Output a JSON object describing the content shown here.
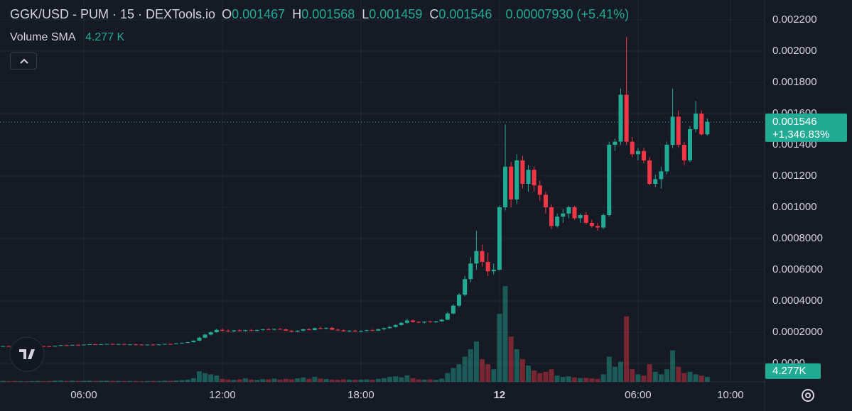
{
  "chart_data": {
    "type": "candlestick",
    "title": "GGK/USD - PUM · 15 · DEXTools.io",
    "legend_ohlc": [
      {
        "label": "O",
        "value": "0.001467"
      },
      {
        "label": "H",
        "value": "0.001568"
      },
      {
        "label": "L",
        "value": "0.001459"
      },
      {
        "label": "C",
        "value": "0.001546"
      }
    ],
    "change": "0.00007930 (+5.41%)",
    "volume_sma": {
      "name": "Volume SMA",
      "value": 4277,
      "label": "4.277 K",
      "axis_label": "4.277K"
    },
    "last_price": {
      "value": 0.001546,
      "label": "0.001546",
      "change": "+1,346.83%"
    },
    "up_color": "#22ab94",
    "down_color": "#f23645",
    "grid": true,
    "x": [
      2.5,
      2.75,
      3,
      3.25,
      3.5,
      3.75,
      4,
      4.25,
      4.5,
      4.75,
      5,
      5.25,
      5.5,
      5.75,
      6,
      6.25,
      6.5,
      6.75,
      7,
      7.25,
      7.5,
      7.75,
      8,
      8.25,
      8.5,
      8.75,
      9,
      9.25,
      9.5,
      9.75,
      10,
      10.25,
      10.5,
      10.75,
      11,
      11.25,
      11.5,
      11.75,
      12,
      12.25,
      12.5,
      12.75,
      13,
      13.25,
      13.5,
      13.75,
      14,
      14.25,
      14.5,
      14.75,
      15,
      15.25,
      15.5,
      15.75,
      16,
      16.25,
      16.5,
      16.75,
      17,
      17.25,
      17.5,
      17.75,
      18,
      18.25,
      18.5,
      18.75,
      19,
      19.25,
      19.5,
      19.75,
      20,
      20.25,
      20.5,
      20.75,
      21,
      21.25,
      21.5,
      21.75,
      22,
      22.25,
      22.5,
      22.75,
      23,
      23.25,
      23.5,
      23.75,
      24,
      24.25,
      24.5,
      24.75,
      25,
      25.25,
      25.5,
      25.75,
      26,
      26.25,
      26.5,
      26.75,
      27,
      27.25,
      27.5,
      27.75,
      28,
      28.25,
      28.5,
      28.75,
      29,
      29.25,
      29.5,
      29.75,
      30,
      30.25,
      30.5,
      30.75,
      31,
      31.25,
      31.5,
      31.75,
      32,
      32.25,
      32.5,
      32.75,
      33
    ],
    "open": [
      0.00011,
      0.000111,
      0.00011,
      0.000108,
      0.00011,
      0.000108,
      0.000109,
      0.000111,
      0.00011,
      0.000109,
      0.000113,
      0.000117,
      0.000116,
      0.000119,
      0.000118,
      0.000121,
      0.000123,
      0.000121,
      0.000123,
      0.000125,
      0.000123,
      0.000124,
      0.000121,
      0.000122,
      0.000121,
      0.000119,
      0.000121,
      0.00012,
      0.000122,
      0.000125,
      0.000124,
      0.000129,
      0.000133,
      0.000136,
      0.000146,
      0.000165,
      0.000185,
      0.0002,
      0.000215,
      0.00021,
      0.000206,
      0.000212,
      0.000208,
      0.000213,
      0.00021,
      0.000214,
      0.000219,
      0.000216,
      0.000221,
      0.000218,
      0.00021,
      0.000204,
      0.00021,
      0.000219,
      0.000214,
      0.000226,
      0.000224,
      0.000228,
      0.000216,
      0.000212,
      0.000206,
      0.00021,
      0.000205,
      0.000209,
      0.000213,
      0.00021,
      0.000219,
      0.000226,
      0.000234,
      0.000246,
      0.00026,
      0.000275,
      0.000266,
      0.000262,
      0.000268,
      0.000264,
      0.00027,
      0.00028,
      0.00032,
      0.00037,
      0.00044,
      0.00054,
      0.00064,
      0.00072,
      0.00065,
      0.00059,
      0.0006,
      0.001,
      0.00126,
      0.00105,
      0.0013,
      0.00115,
      0.00124,
      0.00114,
      0.00108,
      0.001,
      0.00088,
      0.00094,
      0.00096,
      0.001,
      0.00093,
      0.00095,
      0.0009,
      0.00088,
      0.00087,
      0.00095,
      0.0014,
      0.00142,
      0.00172,
      0.00142,
      0.00134,
      0.00136,
      0.0013,
      0.00115,
      0.00118,
      0.00123,
      0.0014,
      0.00158,
      0.0014,
      0.0013,
      0.0015,
      0.0016,
      0.001467
    ],
    "high": [
      0.000112,
      0.000113,
      0.000112,
      0.000111,
      0.000111,
      0.00011,
      0.000112,
      0.000113,
      0.000112,
      0.000114,
      0.000118,
      0.000119,
      0.00012,
      0.000121,
      0.000122,
      0.000124,
      0.000125,
      0.000124,
      0.000126,
      0.000127,
      0.000126,
      0.000126,
      0.000124,
      0.000125,
      0.000123,
      0.000122,
      0.000124,
      0.000123,
      0.000126,
      0.000128,
      0.00013,
      0.000134,
      0.000138,
      0.000148,
      0.00017,
      0.00019,
      0.000205,
      0.000222,
      0.000225,
      0.000218,
      0.000214,
      0.000218,
      0.000216,
      0.00022,
      0.000217,
      0.000222,
      0.000226,
      0.000224,
      0.000228,
      0.000222,
      0.000214,
      0.000212,
      0.000222,
      0.000226,
      0.00023,
      0.000236,
      0.00023,
      0.000232,
      0.000222,
      0.000218,
      0.000214,
      0.000216,
      0.000212,
      0.000216,
      0.00022,
      0.000222,
      0.00023,
      0.000238,
      0.00025,
      0.000265,
      0.000288,
      0.000282,
      0.000272,
      0.00027,
      0.000275,
      0.000272,
      0.000285,
      0.00033,
      0.00038,
      0.00045,
      0.00056,
      0.00068,
      0.00085,
      0.00076,
      0.00071,
      0.00064,
      0.00101,
      0.00153,
      0.00129,
      0.00134,
      0.00133,
      0.00127,
      0.00126,
      0.00117,
      0.0011,
      0.00102,
      0.00096,
      0.00099,
      0.00101,
      0.00101,
      0.00096,
      0.00097,
      0.00092,
      0.0009,
      0.00096,
      0.00142,
      0.00144,
      0.00176,
      0.00209,
      0.00145,
      0.00138,
      0.00138,
      0.00132,
      0.00121,
      0.00126,
      0.00142,
      0.00176,
      0.00162,
      0.00142,
      0.00152,
      0.00168,
      0.00162,
      0.001568
    ],
    "low": [
      0.000108,
      0.000109,
      0.000107,
      0.000107,
      0.000107,
      0.000106,
      0.000108,
      0.000109,
      0.000108,
      0.000108,
      0.000112,
      0.000115,
      0.000115,
      0.000116,
      0.000117,
      0.000119,
      0.00012,
      0.000119,
      0.000121,
      0.000122,
      0.000121,
      0.00012,
      0.000119,
      0.00012,
      0.000118,
      0.000117,
      0.000119,
      0.000118,
      0.000121,
      0.000122,
      0.000123,
      0.000127,
      0.000131,
      0.000134,
      0.000144,
      0.00016,
      0.00018,
      0.000196,
      0.000205,
      0.000202,
      0.0002,
      0.000205,
      0.000204,
      0.000208,
      0.000205,
      0.00021,
      0.000213,
      0.000211,
      0.000216,
      0.000208,
      0.0002,
      0.0002,
      0.000206,
      0.000212,
      0.000212,
      0.00022,
      0.000218,
      0.000214,
      0.000208,
      0.000204,
      0.0002,
      0.000203,
      0.0002,
      0.000205,
      0.000208,
      0.000208,
      0.000214,
      0.000222,
      0.00023,
      0.000242,
      0.000255,
      0.000262,
      0.000258,
      0.000255,
      0.000262,
      0.00026,
      0.000266,
      0.000276,
      0.000315,
      0.00036,
      0.00043,
      0.00052,
      0.0006,
      0.00062,
      0.00056,
      0.00057,
      0.000595,
      0.00098,
      0.001,
      0.00102,
      0.00112,
      0.0011,
      0.0011,
      0.00104,
      0.00096,
      0.00086,
      0.00087,
      0.0009,
      0.00093,
      0.00092,
      0.0009,
      0.00089,
      0.00087,
      0.00085,
      0.00086,
      0.00094,
      0.00136,
      0.0014,
      0.0014,
      0.00132,
      0.0013,
      0.00128,
      0.00114,
      0.00113,
      0.00112,
      0.00121,
      0.00138,
      0.00138,
      0.00127,
      0.00129,
      0.00148,
      0.00146,
      0.001459
    ],
    "close": [
      0.000111,
      0.00011,
      0.000108,
      0.00011,
      0.000108,
      0.000109,
      0.000111,
      0.00011,
      0.000109,
      0.000113,
      0.000117,
      0.000116,
      0.000119,
      0.000118,
      0.000121,
      0.000123,
      0.000121,
      0.000123,
      0.000125,
      0.000123,
      0.000124,
      0.000121,
      0.000122,
      0.000121,
      0.000119,
      0.000121,
      0.00012,
      0.000122,
      0.000125,
      0.000124,
      0.000129,
      0.000133,
      0.000136,
      0.000146,
      0.000165,
      0.000185,
      0.0002,
      0.000215,
      0.00021,
      0.000206,
      0.000212,
      0.000208,
      0.000213,
      0.00021,
      0.000214,
      0.000219,
      0.000216,
      0.000221,
      0.000218,
      0.00021,
      0.000204,
      0.00021,
      0.000219,
      0.000214,
      0.000226,
      0.000224,
      0.000228,
      0.000216,
      0.000212,
      0.000206,
      0.00021,
      0.000205,
      0.000209,
      0.000213,
      0.00021,
      0.000219,
      0.000226,
      0.000234,
      0.000246,
      0.00026,
      0.000275,
      0.000266,
      0.000262,
      0.000268,
      0.000264,
      0.00027,
      0.00028,
      0.00032,
      0.00037,
      0.00044,
      0.00054,
      0.00064,
      0.00072,
      0.00065,
      0.00059,
      0.0006,
      0.001,
      0.00126,
      0.00105,
      0.0013,
      0.00115,
      0.00124,
      0.00114,
      0.00108,
      0.001,
      0.00088,
      0.00094,
      0.00096,
      0.001,
      0.00093,
      0.00095,
      0.0009,
      0.00088,
      0.00087,
      0.00095,
      0.0014,
      0.00142,
      0.00172,
      0.00142,
      0.00134,
      0.00136,
      0.0013,
      0.00115,
      0.00118,
      0.00123,
      0.0014,
      0.00158,
      0.0014,
      0.0013,
      0.0015,
      0.0016,
      0.001467,
      0.001546
    ],
    "volume": [
      400,
      300,
      350,
      300,
      250,
      300,
      400,
      300,
      350,
      500,
      600,
      400,
      500,
      400,
      450,
      500,
      400,
      450,
      500,
      400,
      400,
      350,
      400,
      350,
      300,
      350,
      400,
      350,
      500,
      450,
      600,
      700,
      900,
      1500,
      4200,
      3500,
      3000,
      2500,
      1200,
      900,
      800,
      1000,
      1400,
      900,
      800,
      1100,
      1000,
      1300,
      900,
      1200,
      1000,
      1400,
      1800,
      1200,
      2000,
      1300,
      1100,
      900,
      800,
      1000,
      900,
      800,
      900,
      1000,
      800,
      1200,
      1500,
      2000,
      2200,
      1800,
      2600,
      1500,
      1000,
      900,
      1000,
      800,
      1300,
      3500,
      5500,
      7000,
      10000,
      13000,
      16000,
      9000,
      7000,
      5000,
      27000,
      38000,
      18000,
      13000,
      9000,
      6500,
      4500,
      3500,
      4000,
      5000,
      2500,
      2000,
      2200,
      1800,
      1500,
      1600,
      1400,
      1200,
      3000,
      10000,
      6000,
      8000,
      26000,
      5000,
      3000,
      2500,
      7000,
      4000,
      3000,
      5000,
      12500,
      6000,
      3500,
      4000,
      3000,
      2500,
      2000
    ],
    "volume_lim": [
      0,
      40000
    ],
    "xlim": [
      2.37,
      35.45
    ],
    "xticks": [
      {
        "value": 6,
        "label": "06:00"
      },
      {
        "value": 12,
        "label": "12:00"
      },
      {
        "value": 18,
        "label": "18:00"
      },
      {
        "value": 24,
        "label": "12"
      },
      {
        "value": 30,
        "label": "06:00"
      },
      {
        "value": 34,
        "label": "10:00"
      }
    ],
    "ylim": [
      -0.000118,
      0.002327
    ],
    "yticks": [
      {
        "value": 0,
        "label": "0.0000"
      },
      {
        "value": 0.0002,
        "label": "0.0002000"
      },
      {
        "value": 0.0004,
        "label": "0.0004000"
      },
      {
        "value": 0.0006,
        "label": "0.0006000"
      },
      {
        "value": 0.0008,
        "label": "0.0008000"
      },
      {
        "value": 0.001,
        "label": "0.001000"
      },
      {
        "value": 0.0012,
        "label": "0.001200"
      },
      {
        "value": 0.0014,
        "label": "0.001400"
      },
      {
        "value": 0.0016,
        "label": "0.001600"
      },
      {
        "value": 0.0018,
        "label": "0.001800"
      },
      {
        "value": 0.002,
        "label": "0.002000"
      },
      {
        "value": 0.0022,
        "label": "0.002200"
      }
    ]
  }
}
